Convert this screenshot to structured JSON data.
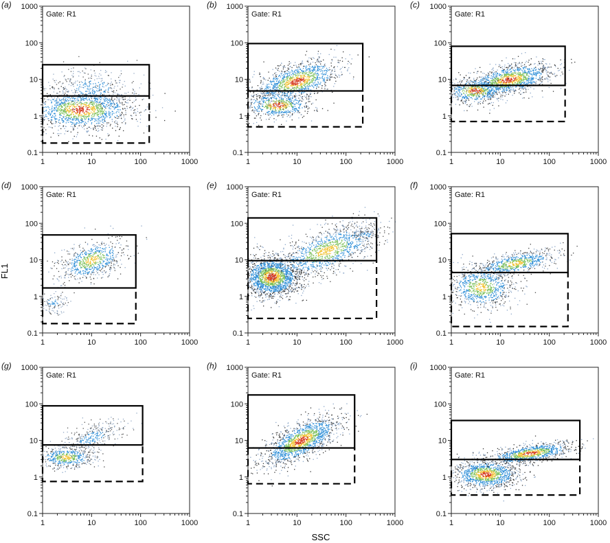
{
  "figure": {
    "y_label": "FL1",
    "x_label": "SSC"
  },
  "chart_data": [
    {
      "panel": "(a)",
      "type": "scatter",
      "gate_label": "Gate: R1",
      "xscale": "log",
      "yscale": "log",
      "xlim": [
        1,
        1000
      ],
      "ylim": [
        0.1,
        1000
      ],
      "x_ticks": [
        "1",
        "10",
        "100",
        "1000"
      ],
      "y_ticks": [
        "0.1",
        "1",
        "10",
        "100",
        "1000"
      ],
      "upper_gate": {
        "x": [
          1,
          150
        ],
        "y": [
          3.5,
          25
        ]
      },
      "lower_gate": {
        "x": [
          1,
          150
        ],
        "y": [
          0.18,
          3.5
        ]
      },
      "clusters": [
        {
          "x": [
            6,
            0.55
          ],
          "y": [
            1.5,
            0.28
          ],
          "n": 1400,
          "density": "high"
        },
        {
          "x": [
            10,
            0.5
          ],
          "y": [
            6,
            0.3
          ],
          "n": 350,
          "density": "low"
        }
      ]
    },
    {
      "panel": "(b)",
      "type": "scatter",
      "gate_label": "Gate: R1",
      "xscale": "log",
      "yscale": "log",
      "xlim": [
        1,
        1000
      ],
      "ylim": [
        0.1,
        1000
      ],
      "x_ticks": [
        "1",
        "10",
        "100",
        "1000"
      ],
      "y_ticks": [
        "0.1",
        "1",
        "10",
        "100",
        "1000"
      ],
      "upper_gate": {
        "x": [
          1,
          220
        ],
        "y": [
          4.8,
          95
        ]
      },
      "lower_gate": {
        "x": [
          1,
          220
        ],
        "y": [
          0.5,
          4.8
        ]
      },
      "clusters": [
        {
          "x": [
            10,
            0.45
          ],
          "y": [
            9,
            0.25
          ],
          "n": 1200,
          "density": "high",
          "slope": 0.35
        },
        {
          "x": [
            4,
            0.35
          ],
          "y": [
            2,
            0.18
          ],
          "n": 600,
          "density": "high"
        }
      ]
    },
    {
      "panel": "(c)",
      "type": "scatter",
      "gate_label": "Gate: R1",
      "xscale": "log",
      "yscale": "log",
      "xlim": [
        1,
        1000
      ],
      "ylim": [
        0.1,
        1000
      ],
      "x_ticks": [
        "1",
        "10",
        "100",
        "1000"
      ],
      "y_ticks": [
        "0.1",
        "1",
        "10",
        "100",
        "1000"
      ],
      "upper_gate": {
        "x": [
          1,
          210
        ],
        "y": [
          6.8,
          80
        ]
      },
      "lower_gate": {
        "x": [
          1,
          210
        ],
        "y": [
          0.7,
          6.8
        ]
      },
      "clusters": [
        {
          "x": [
            15,
            0.45
          ],
          "y": [
            10,
            0.2
          ],
          "n": 1300,
          "density": "high",
          "slope": 0.25
        },
        {
          "x": [
            3,
            0.3
          ],
          "y": [
            5,
            0.18
          ],
          "n": 500,
          "density": "high"
        }
      ]
    },
    {
      "panel": "(d)",
      "type": "scatter",
      "gate_label": "Gate: R1",
      "xscale": "log",
      "yscale": "log",
      "xlim": [
        1,
        1000
      ],
      "ylim": [
        0.1,
        1000
      ],
      "x_ticks": [
        "1",
        "10",
        "100",
        "1000"
      ],
      "y_ticks": [
        "0.1",
        "1",
        "10",
        "100",
        "1000"
      ],
      "upper_gate": {
        "x": [
          1,
          80
        ],
        "y": [
          1.7,
          48
        ]
      },
      "lower_gate": {
        "x": [
          1,
          80
        ],
        "y": [
          0.18,
          1.7
        ]
      },
      "clusters": [
        {
          "x": [
            10,
            0.35
          ],
          "y": [
            10,
            0.25
          ],
          "n": 700,
          "density": "medium",
          "slope": 0.4
        },
        {
          "x": [
            1.6,
            0.15
          ],
          "y": [
            0.7,
            0.15
          ],
          "n": 120,
          "density": "low"
        }
      ]
    },
    {
      "panel": "(e)",
      "type": "scatter",
      "gate_label": "Gate: R1",
      "xscale": "log",
      "yscale": "log",
      "xlim": [
        1,
        1000
      ],
      "ylim": [
        0.1,
        1000
      ],
      "x_ticks": [
        "1",
        "10",
        "100",
        "1000"
      ],
      "y_ticks": [
        "0.1",
        "1",
        "10",
        "100",
        "1000"
      ],
      "upper_gate": {
        "x": [
          1,
          420
        ],
        "y": [
          9.5,
          140
        ]
      },
      "lower_gate": {
        "x": [
          1,
          420
        ],
        "y": [
          0.25,
          9.5
        ]
      },
      "clusters": [
        {
          "x": [
            3,
            0.3
          ],
          "y": [
            3.5,
            0.28
          ],
          "n": 1800,
          "density": "high"
        },
        {
          "x": [
            40,
            0.55
          ],
          "y": [
            18,
            0.3
          ],
          "n": 1200,
          "density": "medium",
          "slope": 0.45
        },
        {
          "x": [
            250,
            0.15
          ],
          "y": [
            50,
            0.08
          ],
          "n": 120,
          "density": "low"
        }
      ]
    },
    {
      "panel": "(f)",
      "type": "scatter",
      "gate_label": "Gate: R1",
      "xscale": "log",
      "yscale": "log",
      "xlim": [
        1,
        1000
      ],
      "ylim": [
        0.1,
        1000
      ],
      "x_ticks": [
        "1",
        "10",
        "100",
        "1000"
      ],
      "y_ticks": [
        "0.1",
        "1",
        "10",
        "100",
        "1000"
      ],
      "upper_gate": {
        "x": [
          1,
          240
        ],
        "y": [
          4.5,
          52
        ]
      },
      "lower_gate": {
        "x": [
          1,
          240
        ],
        "y": [
          0.15,
          4.5
        ]
      },
      "clusters": [
        {
          "x": [
            20,
            0.45
          ],
          "y": [
            8,
            0.15
          ],
          "n": 700,
          "density": "medium",
          "slope": 0.25
        },
        {
          "x": [
            4,
            0.35
          ],
          "y": [
            1.8,
            0.3
          ],
          "n": 800,
          "density": "medium"
        }
      ]
    },
    {
      "panel": "(g)",
      "type": "scatter",
      "gate_label": "Gate: R1",
      "xscale": "log",
      "yscale": "log",
      "xlim": [
        1,
        1000
      ],
      "ylim": [
        0.1,
        1000
      ],
      "x_ticks": [
        "1",
        "10",
        "100",
        "1000"
      ],
      "y_ticks": [
        "0.1",
        "1",
        "10",
        "100",
        "1000"
      ],
      "upper_gate": {
        "x": [
          1,
          110
        ],
        "y": [
          7.5,
          88
        ]
      },
      "lower_gate": {
        "x": [
          1,
          110
        ],
        "y": [
          0.75,
          7.5
        ]
      },
      "clusters": [
        {
          "x": [
            3,
            0.3
          ],
          "y": [
            3.5,
            0.15
          ],
          "n": 500,
          "density": "medium"
        },
        {
          "x": [
            10,
            0.35
          ],
          "y": [
            12,
            0.2
          ],
          "n": 350,
          "density": "low",
          "slope": 0.4
        }
      ]
    },
    {
      "panel": "(h)",
      "type": "scatter",
      "gate_label": "Gate: R1",
      "xscale": "log",
      "yscale": "log",
      "xlim": [
        1,
        1000
      ],
      "ylim": [
        0.1,
        1000
      ],
      "x_ticks": [
        "1",
        "10",
        "100",
        "1000"
      ],
      "y_ticks": [
        "0.1",
        "1",
        "10",
        "100",
        "1000"
      ],
      "upper_gate": {
        "x": [
          1,
          150
        ],
        "y": [
          6.2,
          175
        ]
      },
      "lower_gate": {
        "x": [
          1,
          150
        ],
        "y": [
          0.65,
          6.2
        ]
      },
      "clusters": [
        {
          "x": [
            12,
            0.4
          ],
          "y": [
            10,
            0.25
          ],
          "n": 1500,
          "density": "high",
          "slope": 0.6
        }
      ]
    },
    {
      "panel": "(i)",
      "type": "scatter",
      "gate_label": "Gate: R1",
      "xscale": "log",
      "yscale": "log",
      "xlim": [
        1,
        1000
      ],
      "ylim": [
        0.1,
        1000
      ],
      "x_ticks": [
        "1",
        "10",
        "100",
        "1000"
      ],
      "y_ticks": [
        "0.1",
        "1",
        "10",
        "100",
        "1000"
      ],
      "upper_gate": {
        "x": [
          1,
          420
        ],
        "y": [
          3,
          35
        ]
      },
      "lower_gate": {
        "x": [
          1,
          420
        ],
        "y": [
          0.32,
          3
        ]
      },
      "clusters": [
        {
          "x": [
            5,
            0.35
          ],
          "y": [
            1.2,
            0.2
          ],
          "n": 1100,
          "density": "high"
        },
        {
          "x": [
            40,
            0.45
          ],
          "y": [
            4.5,
            0.12
          ],
          "n": 900,
          "density": "high",
          "slope": 0.2
        }
      ]
    }
  ]
}
